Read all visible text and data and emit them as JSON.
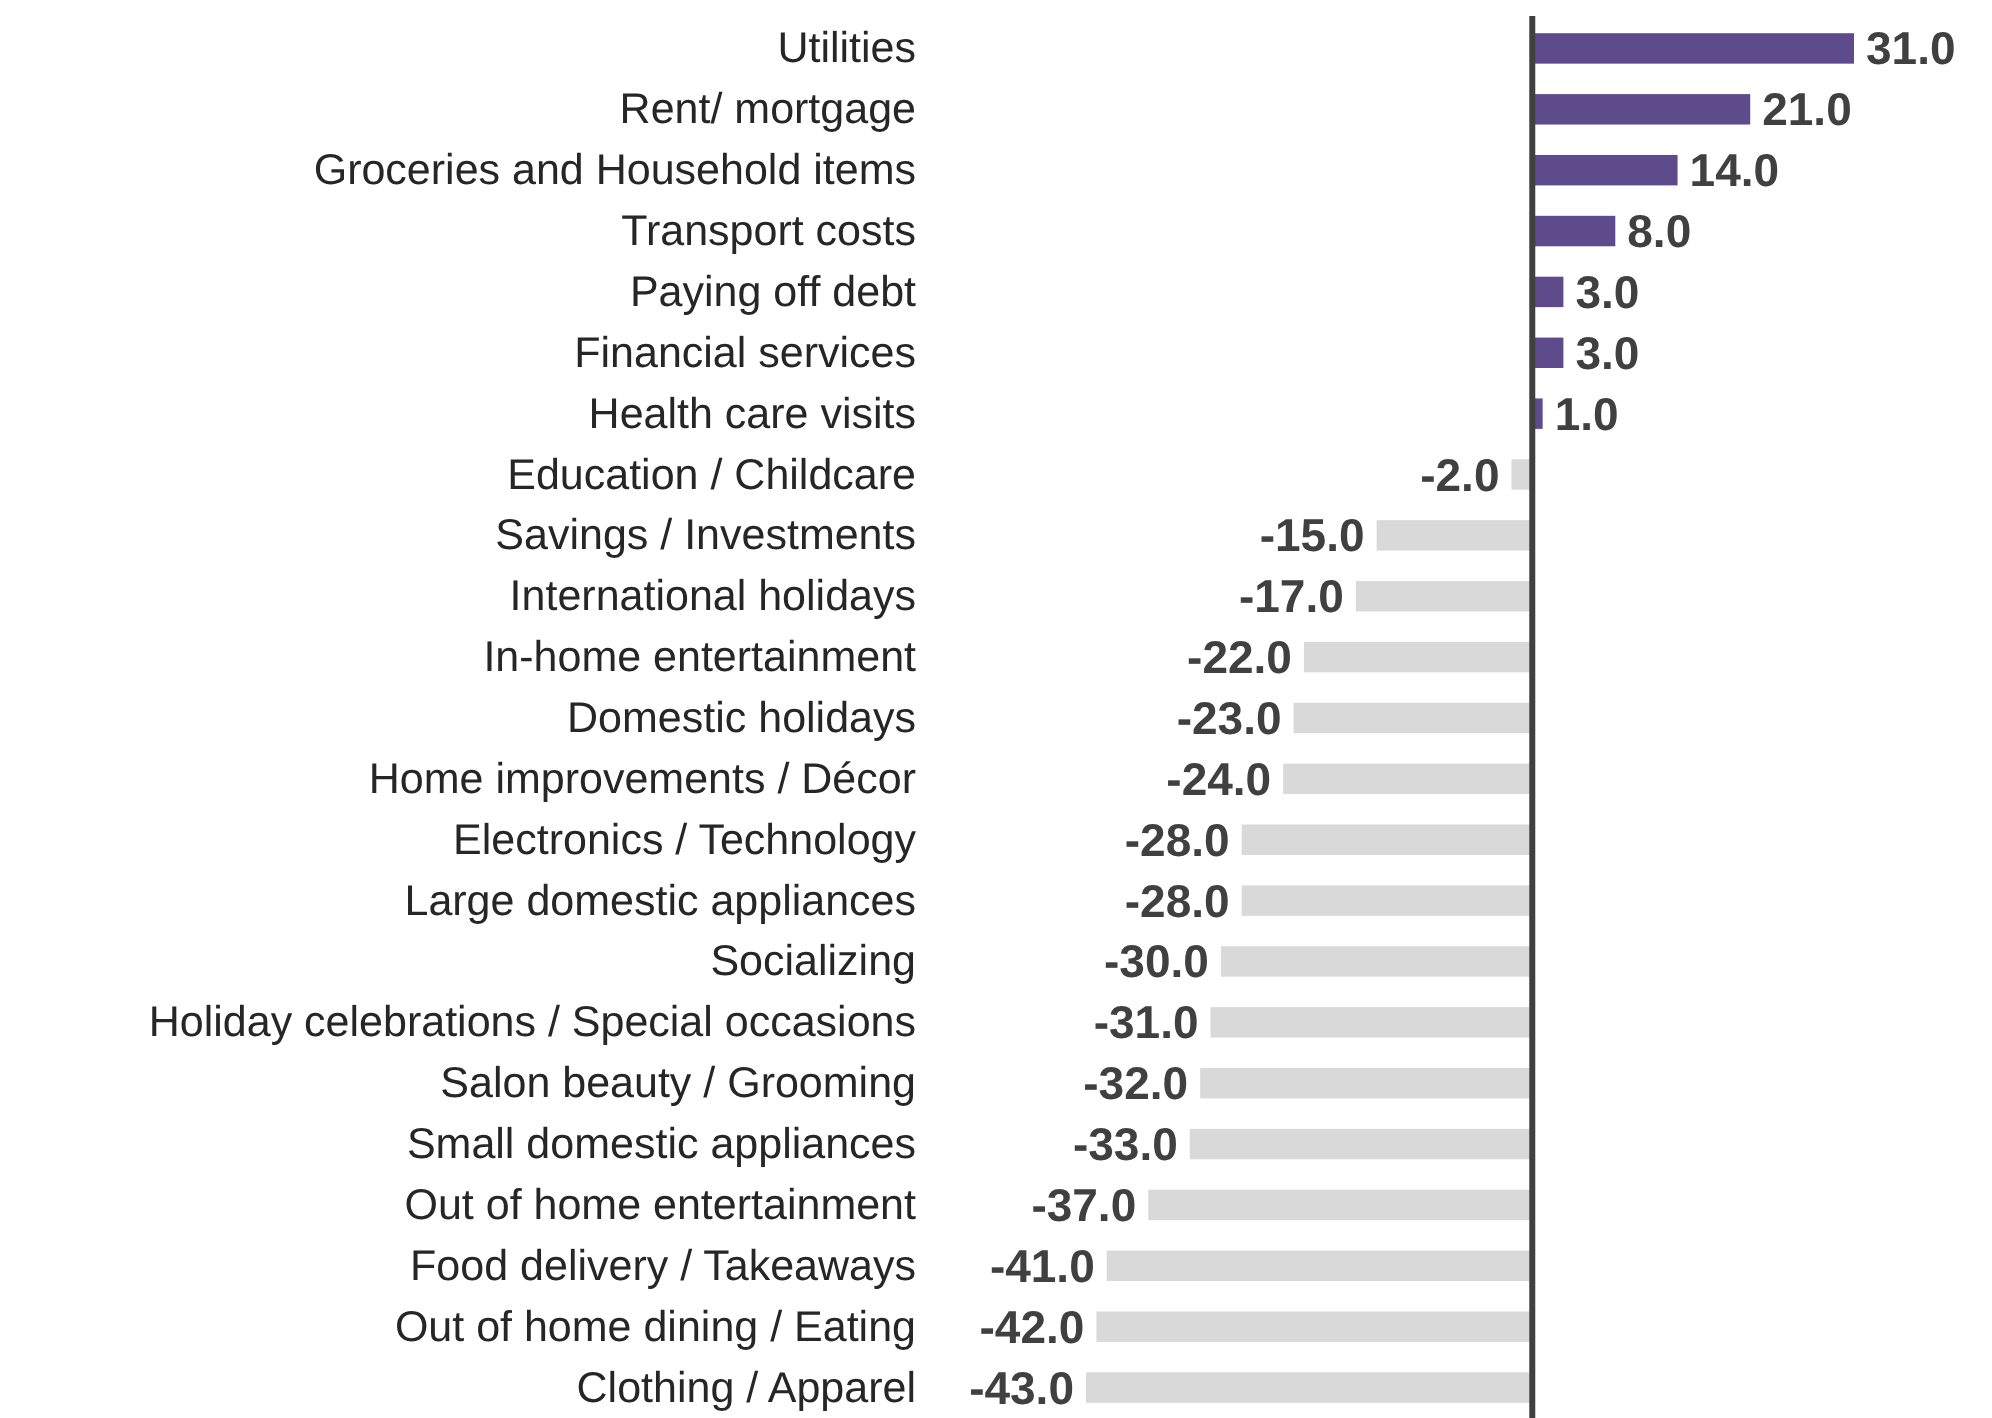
{
  "chart_data": {
    "type": "bar",
    "orientation": "horizontal",
    "categories": [
      "Utilities",
      "Rent/ mortgage",
      "Groceries and Household items",
      "Transport costs",
      "Paying off debt",
      "Financial services",
      "Health care visits",
      "Education / Childcare",
      "Savings / Investments",
      "International holidays",
      "In-home entertainment",
      "Domestic holidays",
      "Home improvements / Décor",
      "Electronics / Technology",
      "Large domestic appliances",
      "Socializing",
      "Holiday celebrations / Special occasions",
      "Salon beauty / Grooming",
      "Small domestic appliances",
      "Out of home entertainment",
      "Food delivery / Takeaways",
      "Out of home dining / Eating",
      "Clothing / Apparel"
    ],
    "values": [
      31,
      21,
      14,
      8,
      3,
      3,
      1,
      -2,
      -15,
      -17,
      -22,
      -23,
      -24,
      -28,
      -28,
      -30,
      -31,
      -32,
      -33,
      -37,
      -41,
      -42,
      -43
    ],
    "colors": [
      "#5e4b8b",
      "#5e4b8b",
      "#5e4b8b",
      "#5e4b8b",
      "#5e4b8b",
      "#5e4b8b",
      "#5e4b8b",
      "#d9d9d9",
      "#d9d9d9",
      "#d9d9d9",
      "#d9d9d9",
      "#d9d9d9",
      "#d9d9d9",
      "#d9d9d9",
      "#d9d9d9",
      "#d9d9d9",
      "#d9d9d9",
      "#d9d9d9",
      "#d9d9d9",
      "#d9d9d9",
      "#d9d9d9",
      "#d9d9d9",
      "#d9d9d9"
    ],
    "value_labels": [
      "31.0",
      "21.0",
      "14.0",
      "8.0",
      "3.0",
      "3.0",
      "1.0",
      "-2.0",
      "-15.0",
      "-17.0",
      "-22.0",
      "-23.0",
      "-24.0",
      "-28.0",
      "-28.0",
      "-30.0",
      "-31.0",
      "-32.0",
      "-33.0",
      "-37.0",
      "-41.0",
      "-42.0",
      "-43.0"
    ]
  }
}
